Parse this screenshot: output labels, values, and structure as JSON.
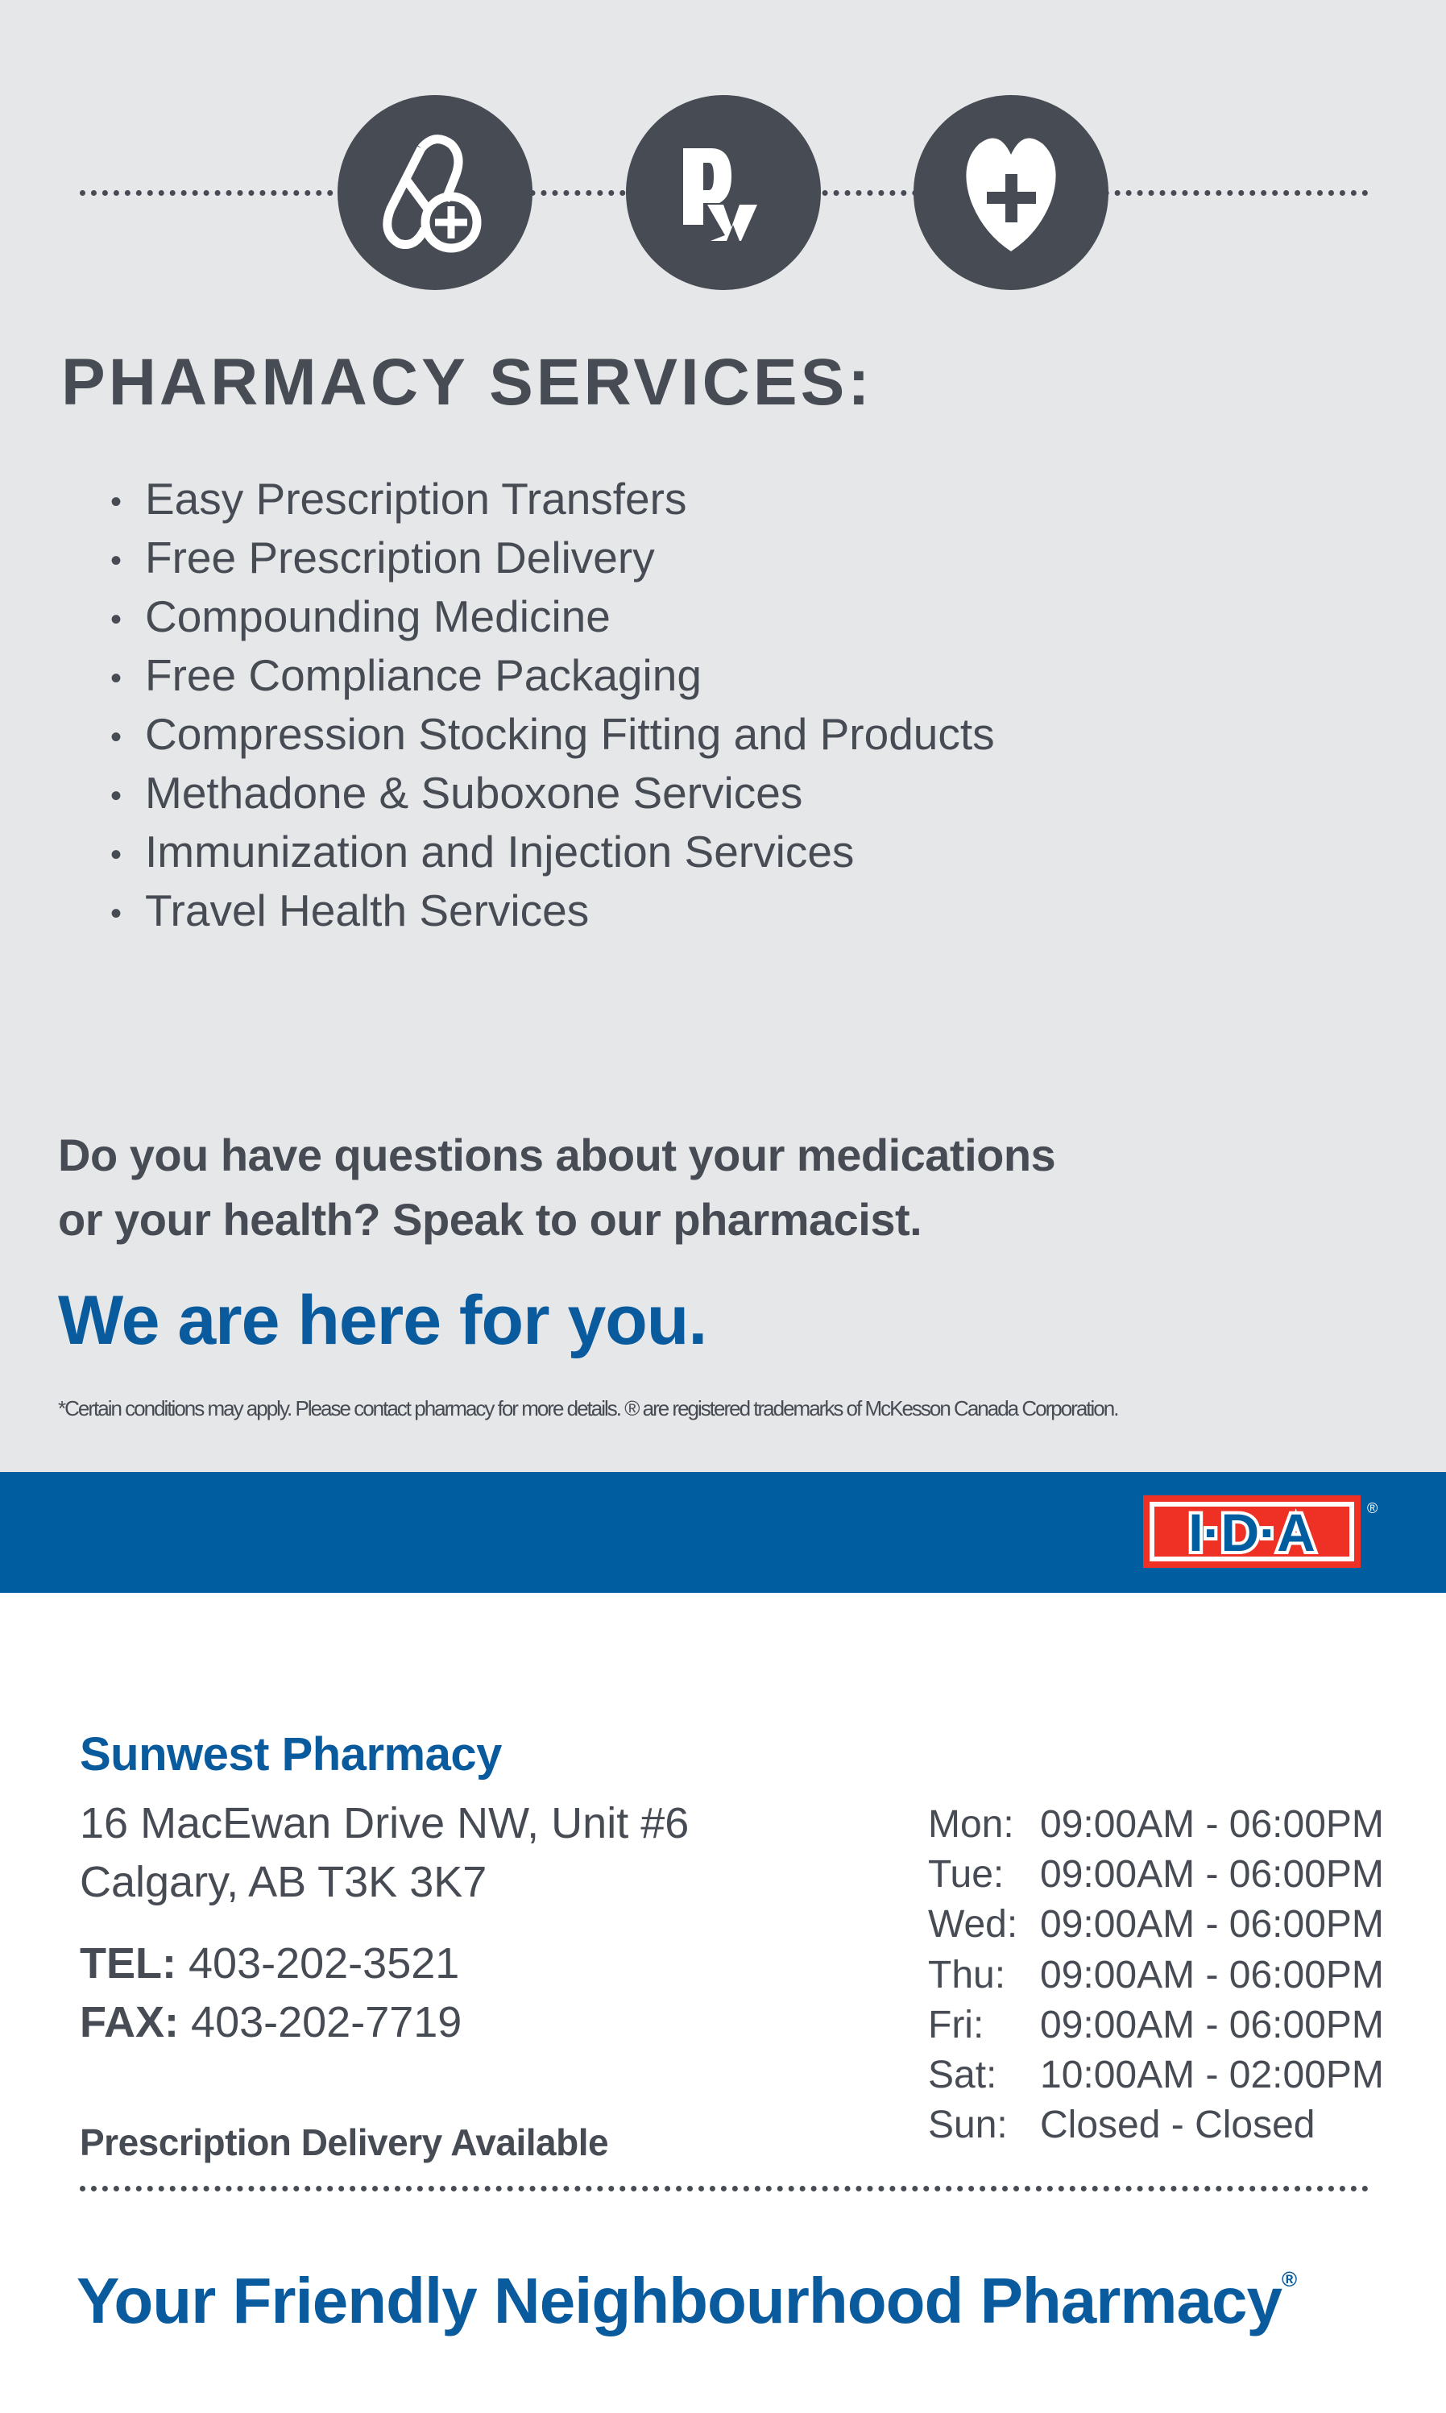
{
  "icons": [
    "pill-plus-icon",
    "rx-icon",
    "heart-plus-icon"
  ],
  "colors": {
    "background": "#e6e7e9",
    "dark": "#474b53",
    "brand_blue": "#005d9f",
    "text_blue": "#0a5b9e",
    "logo_red": "#ee3124"
  },
  "services": {
    "title": "PHARMACY SERVICES:",
    "items": [
      "Easy Prescription Transfers",
      "Free Prescription Delivery",
      "Compounding Medicine",
      "Free Compliance Packaging",
      "Compression Stocking Fitting and Products",
      "Methadone & Suboxone Services",
      "Immunization and Injection Services",
      "Travel Health Services"
    ]
  },
  "question": {
    "line1": "Do you have questions about your medications",
    "line2": "or your health? Speak to our pharmacist."
  },
  "slogan": "We are here for you.",
  "footnote": "*Certain conditions may apply. Please contact pharmacy for more details. ® are registered trademarks of McKesson Canada Corporation.",
  "logo": {
    "text": "I·D·A",
    "registered": "®"
  },
  "store": {
    "name": "Sunwest Pharmacy",
    "address1": "16 MacEwan Drive NW, Unit #6",
    "address2": "Calgary, AB T3K 3K7",
    "tel_label": "TEL:",
    "tel": "403-202-3521",
    "fax_label": "FAX:",
    "fax": "403-202-7719",
    "delivery": "Prescription Delivery Available"
  },
  "hours": [
    {
      "day": "Mon:",
      "time": "09:00AM - 06:00PM"
    },
    {
      "day": "Tue:",
      "time": "09:00AM - 06:00PM"
    },
    {
      "day": "Wed:",
      "time": "09:00AM - 06:00PM"
    },
    {
      "day": "Thu:",
      "time": "09:00AM - 06:00PM"
    },
    {
      "day": "Fri:",
      "time": "09:00AM - 06:00PM"
    },
    {
      "day": "Sat:",
      "time": "10:00AM - 02:00PM"
    },
    {
      "day": "Sun:",
      "time": "Closed - Closed"
    }
  ],
  "tagline": {
    "text": "Your Friendly Neighbourhood Pharmacy",
    "mark": "®"
  }
}
